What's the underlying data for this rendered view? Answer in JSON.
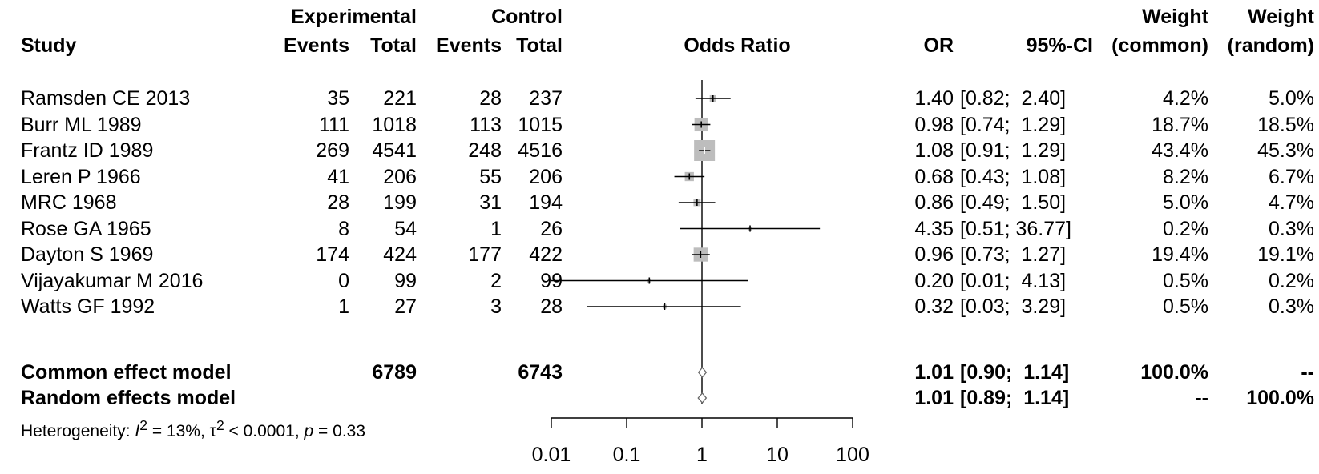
{
  "headers": {
    "study": "Study",
    "experimental": "Experimental",
    "control": "Control",
    "events": "Events",
    "total": "Total",
    "odds_ratio": "Odds Ratio",
    "or": "OR",
    "ci": "95%-CI",
    "weight": "Weight",
    "weight_common": "(common)",
    "weight_random": "(random)"
  },
  "studies": [
    {
      "name": "Ramsden CE 2013",
      "exp_events": "35",
      "exp_total": "221",
      "ctl_events": "28",
      "ctl_total": "237",
      "or": "1.40",
      "ci": "[0.82;  2.40]",
      "w_common": "4.2%",
      "w_random": "5.0%"
    },
    {
      "name": "Burr ML 1989",
      "exp_events": "111",
      "exp_total": "1018",
      "ctl_events": "113",
      "ctl_total": "1015",
      "or": "0.98",
      "ci": "[0.74;  1.29]",
      "w_common": "18.7%",
      "w_random": "18.5%"
    },
    {
      "name": "Frantz ID 1989",
      "exp_events": "269",
      "exp_total": "4541",
      "ctl_events": "248",
      "ctl_total": "4516",
      "or": "1.08",
      "ci": "[0.91;  1.29]",
      "w_common": "43.4%",
      "w_random": "45.3%"
    },
    {
      "name": "Leren P 1966",
      "exp_events": "41",
      "exp_total": "206",
      "ctl_events": "55",
      "ctl_total": "206",
      "or": "0.68",
      "ci": "[0.43;  1.08]",
      "w_common": "8.2%",
      "w_random": "6.7%"
    },
    {
      "name": "MRC 1968",
      "exp_events": "28",
      "exp_total": "199",
      "ctl_events": "31",
      "ctl_total": "194",
      "or": "0.86",
      "ci": "[0.49;  1.50]",
      "w_common": "5.0%",
      "w_random": "4.7%"
    },
    {
      "name": "Rose GA 1965",
      "exp_events": "8",
      "exp_total": "54",
      "ctl_events": "1",
      "ctl_total": "26",
      "or": "4.35",
      "ci": "[0.51; 36.77]",
      "w_common": "0.2%",
      "w_random": "0.3%"
    },
    {
      "name": "Dayton S 1969",
      "exp_events": "174",
      "exp_total": "424",
      "ctl_events": "177",
      "ctl_total": "422",
      "or": "0.96",
      "ci": "[0.73;  1.27]",
      "w_common": "19.4%",
      "w_random": "19.1%"
    },
    {
      "name": "Vijayakumar M 2016",
      "exp_events": "0",
      "exp_total": "99",
      "ctl_events": "2",
      "ctl_total": "99",
      "or": "0.20",
      "ci": "[0.01;  4.13]",
      "w_common": "0.5%",
      "w_random": "0.2%"
    },
    {
      "name": "Watts GF 1992",
      "exp_events": "1",
      "exp_total": "27",
      "ctl_events": "3",
      "ctl_total": "28",
      "or": "0.32",
      "ci": "[0.03;  3.29]",
      "w_common": "0.5%",
      "w_random": "0.3%"
    }
  ],
  "common_model": {
    "label": "Common effect model",
    "exp_total": "6789",
    "ctl_total": "6743",
    "or": "1.01",
    "ci": "[0.90;  1.14]",
    "w_common": "100.0%",
    "w_random": "--"
  },
  "random_model": {
    "label": "Random effects model",
    "or": "1.01",
    "ci": "[0.89;  1.14]",
    "w_common": "--",
    "w_random": "100.0%"
  },
  "heterogeneity": {
    "prefix": "Heterogeneity: ",
    "i2_symbol": "I",
    "sup2a": "2",
    "i2_value": " = 13%, ",
    "tau_symbol": "τ",
    "sup2b": "2",
    "tau_value": " < 0.0001, ",
    "p_symbol": "p",
    "p_value": " = 0.33"
  },
  "chart_data": {
    "type": "forest",
    "scale": "log",
    "xlim": [
      0.01,
      100
    ],
    "ticks": [
      0.01,
      0.1,
      1,
      10,
      100
    ],
    "tick_labels": [
      "0.01",
      "0.1",
      "1",
      "10",
      "100"
    ],
    "reference_line": 1,
    "colors": {
      "box": "#bdbdbd",
      "line": "#000000",
      "point": "#000000"
    },
    "studies": [
      {
        "or": 1.4,
        "lo": 0.82,
        "hi": 2.4,
        "weight": 4.2
      },
      {
        "or": 0.98,
        "lo": 0.74,
        "hi": 1.29,
        "weight": 18.7
      },
      {
        "or": 1.08,
        "lo": 0.91,
        "hi": 1.29,
        "weight": 43.4
      },
      {
        "or": 0.68,
        "lo": 0.43,
        "hi": 1.08,
        "weight": 8.2
      },
      {
        "or": 0.86,
        "lo": 0.49,
        "hi": 1.5,
        "weight": 5.0
      },
      {
        "or": 4.35,
        "lo": 0.51,
        "hi": 36.77,
        "weight": 0.2
      },
      {
        "or": 0.96,
        "lo": 0.73,
        "hi": 1.27,
        "weight": 19.4
      },
      {
        "or": 0.2,
        "lo": 0.01,
        "hi": 4.13,
        "weight": 0.5
      },
      {
        "or": 0.32,
        "lo": 0.03,
        "hi": 3.29,
        "weight": 0.5
      }
    ],
    "summaries": [
      {
        "name": "common",
        "or": 1.01,
        "lo": 0.9,
        "hi": 1.14
      },
      {
        "name": "random",
        "or": 1.01,
        "lo": 0.89,
        "hi": 1.14
      }
    ]
  }
}
